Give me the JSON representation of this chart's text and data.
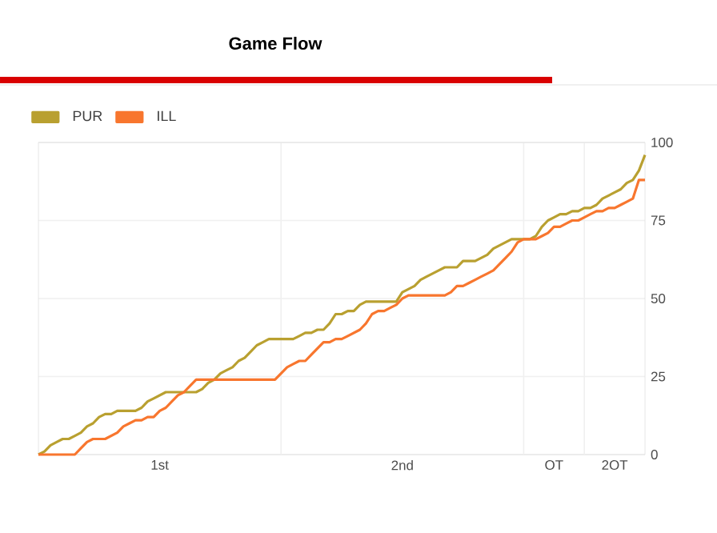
{
  "chart_data": {
    "type": "line",
    "title": "Game Flow",
    "categories": [
      null,
      null,
      null,
      null,
      null,
      null,
      null,
      null,
      null,
      null,
      null,
      null,
      null,
      null,
      null,
      null,
      null,
      null,
      null,
      null,
      "1st",
      null,
      null,
      null,
      null,
      null,
      null,
      null,
      null,
      null,
      null,
      null,
      null,
      null,
      null,
      null,
      null,
      null,
      null,
      null,
      null,
      null,
      null,
      null,
      null,
      null,
      null,
      null,
      null,
      null,
      null,
      null,
      null,
      null,
      null,
      null,
      null,
      null,
      null,
      null,
      "2nd",
      null,
      null,
      null,
      null,
      null,
      null,
      null,
      null,
      null,
      null,
      null,
      null,
      null,
      null,
      null,
      null,
      null,
      null,
      null,
      null,
      null,
      null,
      null,
      null,
      "OT",
      null,
      null,
      null,
      null,
      null,
      null,
      null,
      null,
      null,
      "2OT",
      null,
      null,
      null,
      null,
      null
    ],
    "ylim": [
      0,
      100
    ],
    "yticks": [
      0,
      25,
      50,
      75,
      100
    ],
    "grid": "y",
    "legend": "top left",
    "marker": "none",
    "line_style": "solid",
    "series": [
      {
        "name": "PUR",
        "color": "#b9a030",
        "values": [
          0,
          1,
          3,
          4,
          5,
          5,
          6,
          7,
          9,
          10,
          12,
          13,
          13,
          14,
          14,
          14,
          14,
          15,
          17,
          18,
          19,
          20,
          20,
          20,
          20,
          20,
          20,
          21,
          23,
          24,
          26,
          27,
          28,
          30,
          31,
          33,
          35,
          36,
          37,
          37,
          37,
          37,
          37,
          38,
          39,
          39,
          40,
          40,
          42,
          45,
          45,
          46,
          46,
          48,
          49,
          49,
          49,
          49,
          49,
          49,
          52,
          53,
          54,
          56,
          57,
          58,
          59,
          60,
          60,
          60,
          62,
          62,
          62,
          63,
          64,
          66,
          67,
          68,
          69,
          69,
          69,
          69,
          70,
          73,
          75,
          76,
          77,
          77,
          78,
          78,
          79,
          79,
          80,
          82,
          83,
          84,
          85,
          87,
          88,
          91,
          96
        ]
      },
      {
        "name": "ILL",
        "color": "#f8762e",
        "values": [
          0,
          0,
          0,
          0,
          0,
          0,
          0,
          2,
          4,
          5,
          5,
          5,
          6,
          7,
          9,
          10,
          11,
          11,
          12,
          12,
          14,
          15,
          17,
          19,
          20,
          22,
          24,
          24,
          24,
          24,
          24,
          24,
          24,
          24,
          24,
          24,
          24,
          24,
          24,
          24,
          26,
          28,
          29,
          30,
          30,
          32,
          34,
          36,
          36,
          37,
          37,
          38,
          39,
          40,
          42,
          45,
          46,
          46,
          47,
          48,
          50,
          51,
          51,
          51,
          51,
          51,
          51,
          51,
          52,
          54,
          54,
          55,
          56,
          57,
          58,
          59,
          61,
          63,
          65,
          68,
          69,
          69,
          69,
          70,
          71,
          73,
          73,
          74,
          75,
          75,
          76,
          77,
          78,
          78,
          79,
          79,
          80,
          81,
          82,
          88,
          88
        ]
      }
    ]
  }
}
